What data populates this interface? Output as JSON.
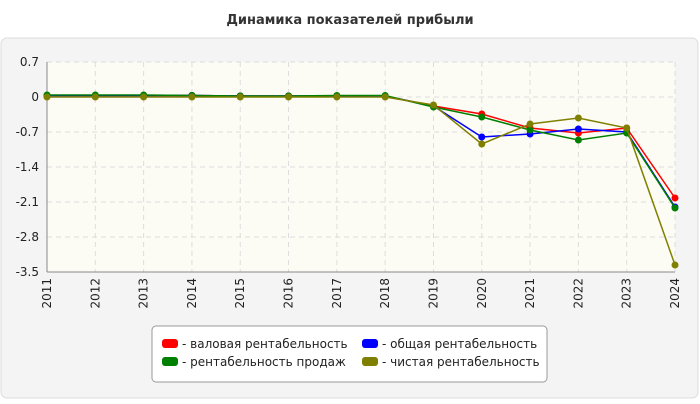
{
  "chart_data": {
    "type": "line",
    "title": "Динамика показателей прибыли",
    "categories": [
      "2011",
      "2012",
      "2013",
      "2014",
      "2015",
      "2016",
      "2017",
      "2018",
      "2019",
      "2020",
      "2021",
      "2022",
      "2023",
      "2024"
    ],
    "ylim": [
      -3.5,
      0.7
    ],
    "yticks": [
      0.7,
      0,
      -0.7,
      -1.4,
      -2.1,
      -2.8,
      -3.5
    ],
    "grid": true,
    "series": [
      {
        "name": "- валовая рентабельность",
        "color": "#ff0000",
        "values": [
          0.03,
          0.03,
          0.03,
          0.03,
          0.02,
          0.02,
          0.02,
          0.02,
          -0.18,
          -0.34,
          -0.62,
          -0.72,
          -0.62,
          -2.02
        ]
      },
      {
        "name": "- общая рентабельность",
        "color": "#0000ff",
        "values": [
          0.03,
          0.03,
          0.03,
          0.03,
          0.02,
          0.02,
          0.02,
          0.02,
          -0.18,
          -0.8,
          -0.74,
          -0.64,
          -0.7,
          -2.2
        ]
      },
      {
        "name": "- рентабельность продаж",
        "color": "#008000",
        "values": [
          0.04,
          0.04,
          0.04,
          0.03,
          0.02,
          0.02,
          0.03,
          0.03,
          -0.2,
          -0.4,
          -0.66,
          -0.86,
          -0.72,
          -2.22
        ]
      },
      {
        "name": "- чистая рентабельность",
        "color": "#808000",
        "values": [
          0.0,
          0.0,
          0.0,
          0.0,
          0.0,
          0.0,
          0.0,
          0.0,
          -0.16,
          -0.94,
          -0.54,
          -0.42,
          -0.62,
          -3.36
        ]
      }
    ]
  }
}
